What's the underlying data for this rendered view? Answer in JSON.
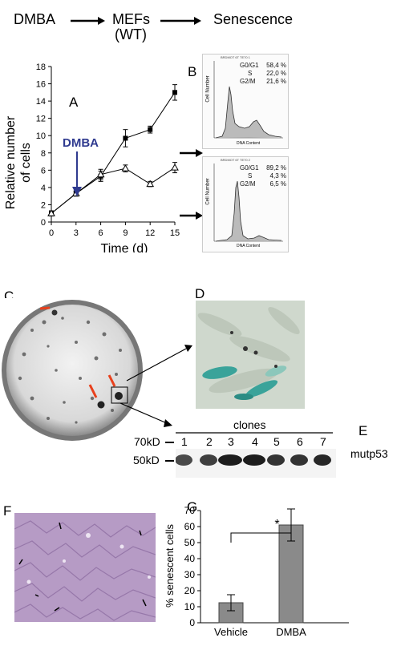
{
  "flow": {
    "step1": "DMBA",
    "step2a": "MEFs",
    "step2b": "(WT)",
    "step3": "Senescence"
  },
  "panels": {
    "a": "A",
    "b": "B",
    "c": "C",
    "d": "D",
    "e": "E",
    "f": "F",
    "g": "G"
  },
  "panel_a": {
    "dmba_label": "DMBA",
    "ylabel_1": "Relative number",
    "ylabel_2": "of cells",
    "xlabel": "Time (d)",
    "xticks": [
      "0",
      "3",
      "6",
      "9",
      "12",
      "15"
    ],
    "yticks": [
      "0",
      "2",
      "4",
      "6",
      "8",
      "10",
      "12",
      "14",
      "16",
      "18"
    ]
  },
  "facs_top": {
    "title": "BRDMOT 6T TE70 1",
    "g0g1_label": "G0/G1",
    "g0g1_value": "58,4 %",
    "s_label": "S",
    "s_value": "22,0 %",
    "g2m_label": "G2/M",
    "g2m_value": "21,6 %",
    "xaxis": "DNA Content",
    "yaxis": "Cell Number"
  },
  "facs_bottom": {
    "title": "BRDMOT 6T TE70 2",
    "g0g1_label": "G0/G1",
    "g0g1_value": "89,2 %",
    "s_label": "S",
    "s_value": "4,3 %",
    "g2m_label": "G2/M",
    "g2m_value": "6,5 %",
    "xaxis": "DNA Content",
    "yaxis": "Cell Number"
  },
  "panel_e": {
    "clones_label": "clones",
    "marker_70": "70kD",
    "marker_50": "50kD",
    "lanes": [
      "1",
      "2",
      "3",
      "4",
      "5",
      "6",
      "7"
    ],
    "protein": "mutp53"
  },
  "panel_g": {
    "ylabel": "% senescent cells",
    "categories": [
      "Vehicle",
      "DMBA"
    ],
    "yticks": [
      "0",
      "10",
      "20",
      "30",
      "40",
      "50",
      "60",
      "70"
    ],
    "significance": "*"
  },
  "colors": {
    "arrow_dmba": "#2f3a8f",
    "stain_blue": "#3aa39a",
    "histology_purple": "#b79ac6",
    "red_arrow": "#e8401c"
  },
  "chart_data": [
    {
      "type": "line",
      "x": [
        0,
        3,
        6,
        9,
        12,
        15
      ],
      "xlabel": "Time (d)",
      "ylabel": "Relative number of cells",
      "xlim": [
        0,
        15
      ],
      "ylim": [
        0,
        18
      ],
      "series": [
        {
          "values": [
            1,
            3.3,
            5.3,
            9.7,
            10.7,
            15
          ],
          "errors": [
            0.3,
            0.3,
            0.6,
            1.0,
            0.4,
            0.9
          ],
          "marker": "square"
        },
        {
          "values": [
            1,
            3.3,
            5.5,
            6.2,
            4.4,
            6.3
          ],
          "errors": [
            0.3,
            0.3,
            0.6,
            0.4,
            0.3,
            0.6
          ],
          "marker": "triangle"
        }
      ],
      "annotations": [
        "DMBA"
      ]
    },
    {
      "type": "bar",
      "categories": [
        "Vehicle",
        "DMBA"
      ],
      "values": [
        12.5,
        61
      ],
      "errors": [
        5,
        10
      ],
      "ylabel": "% senescent cells",
      "ylim": [
        0,
        70
      ],
      "annotations": [
        "*"
      ]
    }
  ]
}
